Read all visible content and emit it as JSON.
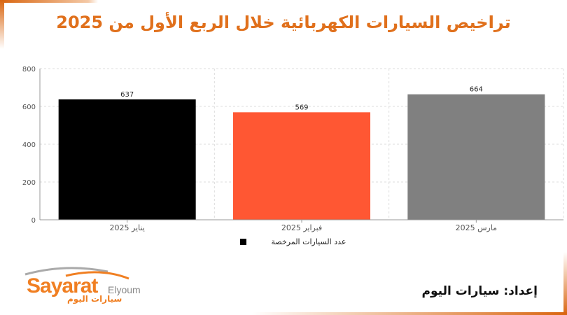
{
  "title": "تراخيص السيارات الكهربائية خلال الربع الأول من 2025",
  "credit": "إعداد: سيارات اليوم",
  "logo": {
    "main": "Sayarat",
    "sub": "Elyoum",
    "arabic": "سيارات اليوم"
  },
  "colors": {
    "accent": "#d9650f",
    "title": "#e0701c"
  },
  "chart_data": {
    "type": "bar",
    "categories": [
      "يناير 2025",
      "فبراير 2025",
      "مارس 2025"
    ],
    "values": [
      637,
      569,
      664
    ],
    "colors": [
      "#000000",
      "#ff5733",
      "#808080"
    ],
    "ylim": [
      0,
      800
    ],
    "yticks": [
      0,
      200,
      400,
      600,
      800
    ],
    "grid": true,
    "legend": {
      "label": "عدد السيارات المرخصة",
      "position": "bottom"
    }
  }
}
